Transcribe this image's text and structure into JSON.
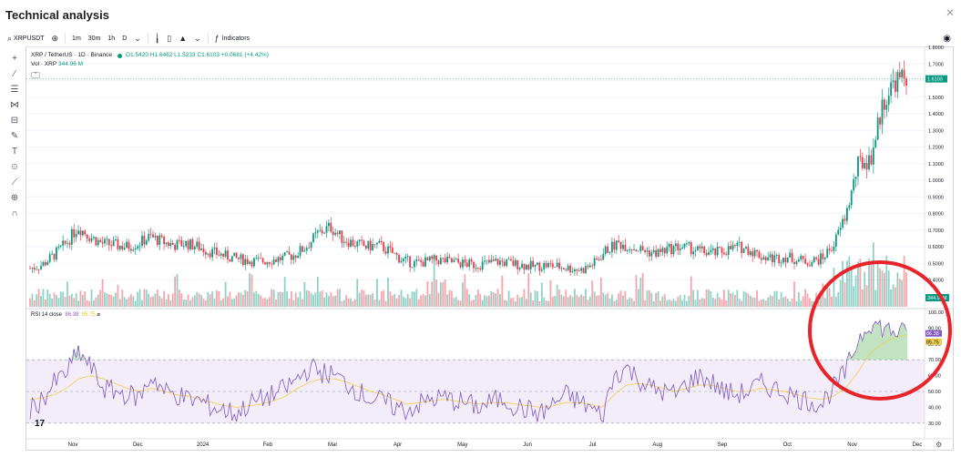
{
  "dialog": {
    "title": "Technical analysis",
    "close_icon": "close-icon"
  },
  "toolbar": {
    "symbol": "XRPUSDT",
    "intervals": [
      "1m",
      "30m",
      "1h",
      "D"
    ],
    "indicators_label": "Indicators"
  },
  "drawing_tools": [
    "crosshair-icon",
    "trend-line-icon",
    "fib-icon",
    "pattern-icon",
    "prediction-icon",
    "brush-icon",
    "text-icon",
    "emoji-icon",
    "ruler-icon",
    "zoom-icon",
    "magnet-icon"
  ],
  "legend": {
    "pair": "XRP / TetherUS · 1D · Binance",
    "o": "O1.5420",
    "h": "H1.6462",
    "l": "L1.5233",
    "c": "C1.6103",
    "chg": "+0.0681 (+4.42%)",
    "vol": "Vol · XRP",
    "vol_val": "344.96 M"
  },
  "rsi_legend": {
    "label": "RSI 14 close",
    "v1": "86.38",
    "v2": "85.75"
  },
  "colors": {
    "up": "#089981",
    "down": "#f23645",
    "rsi": "#7e57c2",
    "rsi_ma": "#f0cf4a",
    "annotation": "#e8232a"
  },
  "chart_data": {
    "type": "candlestick",
    "price_axis": [
      1.8,
      1.7,
      1.6,
      1.5,
      1.4,
      1.3,
      1.2,
      1.1,
      1.0,
      0.9,
      0.8,
      0.7,
      0.6,
      0.5,
      0.4
    ],
    "price_tick_labels": [
      "1.8000",
      "1.7000",
      "1.6000",
      "1.5000",
      "1.4000",
      "1.3000",
      "1.2000",
      "1.1000",
      "1.0000",
      "0.9000",
      "0.8000",
      "0.7000",
      "0.6000",
      "0.5000",
      "0.4000"
    ],
    "last_price_label": "1.6103",
    "volume_label": "344.96M",
    "rsi_axis": [
      100,
      90,
      80,
      70,
      60,
      50,
      40,
      30
    ],
    "rsi_tick_labels": [
      "100.00",
      "90.00",
      "80.00",
      "70.00",
      "60.00",
      "50.00",
      "40.00",
      "30.00"
    ],
    "rsi_labels": [
      "86.38",
      "85.75"
    ],
    "x_tick_labels": [
      "Nov",
      "Dec",
      "2024",
      "Feb",
      "Mar",
      "Apr",
      "May",
      "Jun",
      "Jul",
      "Aug",
      "Sep",
      "Oct",
      "Nov",
      "Dec"
    ],
    "close_anchors": [
      0.47,
      0.49,
      0.55,
      0.62,
      0.72,
      0.66,
      0.62,
      0.61,
      0.6,
      0.62,
      0.66,
      0.63,
      0.61,
      0.62,
      0.6,
      0.57,
      0.55,
      0.53,
      0.52,
      0.51,
      0.52,
      0.53,
      0.55,
      0.6,
      0.68,
      0.72,
      0.65,
      0.62,
      0.6,
      0.61,
      0.57,
      0.52,
      0.5,
      0.51,
      0.52,
      0.51,
      0.5,
      0.49,
      0.5,
      0.51,
      0.5,
      0.49,
      0.48,
      0.49,
      0.48,
      0.47,
      0.46,
      0.5,
      0.58,
      0.62,
      0.6,
      0.58,
      0.56,
      0.58,
      0.6,
      0.59,
      0.57,
      0.56,
      0.58,
      0.6,
      0.58,
      0.54,
      0.53,
      0.54,
      0.52,
      0.51,
      0.53,
      0.62,
      0.8,
      1.1,
      1.12,
      1.45,
      1.6,
      1.61
    ],
    "rsi_anchors": [
      38,
      45,
      55,
      62,
      75,
      65,
      52,
      50,
      48,
      46,
      60,
      50,
      48,
      45,
      44,
      40,
      38,
      36,
      42,
      45,
      48,
      52,
      58,
      65,
      62,
      60,
      55,
      50,
      45,
      44,
      40,
      38,
      42,
      45,
      46,
      44,
      42,
      40,
      44,
      45,
      40,
      38,
      36,
      42,
      48,
      44,
      40,
      34,
      60,
      65,
      58,
      52,
      50,
      48,
      55,
      60,
      56,
      50,
      48,
      50,
      55,
      52,
      50,
      46,
      44,
      42,
      52,
      62,
      82,
      94,
      90,
      88,
      86.38
    ],
    "rsi_ma_anchors": [
      45,
      46,
      48,
      52,
      58,
      60,
      58,
      55,
      52,
      50,
      52,
      50,
      48,
      47,
      45,
      43,
      41,
      40,
      41,
      42,
      44,
      47,
      52,
      56,
      58,
      58,
      56,
      53,
      50,
      48,
      45,
      42,
      43,
      44,
      45,
      44,
      43,
      42,
      43,
      43,
      42,
      41,
      40,
      41,
      43,
      43,
      42,
      40,
      48,
      54,
      55,
      54,
      52,
      50,
      52,
      54,
      54,
      52,
      50,
      50,
      52,
      51,
      50,
      48,
      46,
      45,
      47,
      52,
      62,
      74,
      80,
      84,
      85.75
    ]
  }
}
